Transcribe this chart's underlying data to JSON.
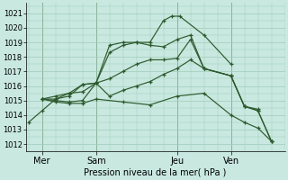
{
  "xlabel": "Pression niveau de la mer( hPa )",
  "bg_color": "#c8e8e0",
  "grid_color": "#a0ccb8",
  "line_color": "#2d5a2d",
  "ylim": [
    1011.5,
    1021.7
  ],
  "yticks": [
    1012,
    1013,
    1014,
    1015,
    1016,
    1017,
    1018,
    1019,
    1020,
    1021
  ],
  "xlim": [
    -0.1,
    9.5
  ],
  "xtick_labels": [
    "Mer",
    "Sam",
    "Jeu",
    "Ven"
  ],
  "xtick_positions": [
    0.5,
    2.5,
    5.5,
    7.5
  ],
  "vline_positions": [
    0.5,
    2.5,
    5.5,
    7.5
  ],
  "lines": [
    {
      "x": [
        0.0,
        0.5,
        1.0,
        1.5,
        2.0,
        2.5,
        3.0,
        3.5,
        4.0,
        4.5,
        5.0,
        5.3,
        5.6,
        6.5,
        7.5
      ],
      "y": [
        1013.5,
        1014.3,
        1015.1,
        1015.5,
        1016.1,
        1016.2,
        1018.8,
        1019.0,
        1019.0,
        1019.0,
        1020.5,
        1020.8,
        1020.8,
        1019.5,
        1017.5
      ]
    },
    {
      "x": [
        0.5,
        1.0,
        1.5,
        2.0,
        2.5,
        3.0,
        3.5,
        4.0,
        4.5,
        5.0,
        5.5,
        6.0,
        6.5,
        7.5,
        8.0,
        8.5
      ],
      "y": [
        1015.1,
        1015.1,
        1015.3,
        1016.1,
        1016.2,
        1018.3,
        1018.8,
        1019.0,
        1018.8,
        1018.7,
        1019.2,
        1019.5,
        1017.2,
        1016.7,
        1014.6,
        1014.4
      ]
    },
    {
      "x": [
        0.5,
        1.0,
        1.5,
        2.0,
        2.5,
        3.0,
        3.5,
        4.0,
        4.5,
        5.0,
        5.5,
        6.0,
        6.5,
        7.5,
        8.0,
        8.5,
        9.0
      ],
      "y": [
        1015.1,
        1015.3,
        1015.5,
        1015.6,
        1016.2,
        1016.5,
        1017.0,
        1017.5,
        1017.8,
        1017.8,
        1017.9,
        1019.2,
        1017.2,
        1016.7,
        1014.6,
        1014.3,
        1012.2
      ]
    },
    {
      "x": [
        0.5,
        1.0,
        1.5,
        2.0,
        2.5,
        3.0,
        3.5,
        4.0,
        4.5,
        5.0,
        5.5,
        6.0,
        6.5,
        7.5,
        8.0,
        8.5,
        9.0
      ],
      "y": [
        1015.1,
        1015.0,
        1014.9,
        1015.0,
        1016.2,
        1015.3,
        1015.7,
        1016.0,
        1016.3,
        1016.8,
        1017.2,
        1017.8,
        1017.2,
        1016.7,
        1014.6,
        1014.3,
        1012.2
      ]
    },
    {
      "x": [
        0.5,
        1.0,
        1.5,
        2.0,
        2.5,
        3.5,
        4.5,
        5.5,
        6.5,
        7.5,
        8.0,
        8.5,
        9.0
      ],
      "y": [
        1015.1,
        1014.9,
        1014.8,
        1014.8,
        1015.1,
        1014.9,
        1014.7,
        1015.3,
        1015.5,
        1014.0,
        1013.5,
        1013.1,
        1012.2
      ]
    }
  ],
  "font_size": 7.0,
  "tick_fontsize": 6.0
}
